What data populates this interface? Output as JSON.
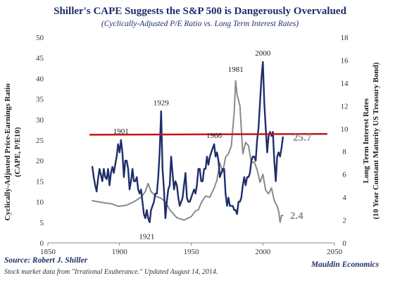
{
  "chart_data": {
    "type": "line",
    "title": "Shiller's CAPE Suggests the S&P 500 is Dangerously Overvalued",
    "subtitle": "(Cyclically-Adjusted P/E Ratio vs. Long Term Interest Rates)",
    "xlabel": "",
    "ylabel_left": "Cyclically-Adjusted Price-Earnings Ratio (CAPE, P/E10)",
    "ylabel_right": "Long Term Interest Rates (10 Year Constant Maturity US Treasury Bond)",
    "xlim": [
      1850,
      2050
    ],
    "ylim_left": [
      0,
      50
    ],
    "ylim_right": [
      0,
      18
    ],
    "x_ticks": [
      "1850",
      "1900",
      "1950",
      "2000",
      "2050"
    ],
    "y_ticks_left": [
      "0",
      "5",
      "10",
      "15",
      "20",
      "25",
      "30",
      "35",
      "40",
      "45",
      "50"
    ],
    "y_ticks_right": [
      "0",
      "2",
      "4",
      "6",
      "8",
      "10",
      "12",
      "14",
      "16",
      "18"
    ],
    "grid": false,
    "legend": "none",
    "colors": {
      "cape": "#1f2d6b",
      "rates": "#8a8a8a",
      "threshold": "#c0171b",
      "title": "#1f2d6b"
    },
    "series": [
      {
        "axis": "left",
        "color": "#1f2d6b",
        "points": [
          [
            1881,
            18.5
          ],
          [
            1882,
            16
          ],
          [
            1883,
            14
          ],
          [
            1884,
            12.5
          ],
          [
            1885,
            15.5
          ],
          [
            1886,
            18
          ],
          [
            1887,
            16.5
          ],
          [
            1888,
            15
          ],
          [
            1889,
            18
          ],
          [
            1890,
            16
          ],
          [
            1891,
            15.5
          ],
          [
            1892,
            18
          ],
          [
            1893,
            14
          ],
          [
            1894,
            17
          ],
          [
            1895,
            18.5
          ],
          [
            1896,
            17
          ],
          [
            1897,
            19
          ],
          [
            1898,
            21
          ],
          [
            1899,
            24
          ],
          [
            1900,
            22
          ],
          [
            1901,
            25
          ],
          [
            1902,
            22
          ],
          [
            1903,
            16
          ],
          [
            1904,
            20
          ],
          [
            1905,
            20
          ],
          [
            1906,
            18
          ],
          [
            1907,
            13
          ],
          [
            1908,
            15
          ],
          [
            1909,
            18
          ],
          [
            1910,
            15
          ],
          [
            1911,
            15
          ],
          [
            1912,
            16
          ],
          [
            1913,
            13
          ],
          [
            1914,
            12
          ],
          [
            1915,
            13
          ],
          [
            1916,
            10
          ],
          [
            1917,
            7
          ],
          [
            1918,
            6
          ],
          [
            1919,
            8
          ],
          [
            1920,
            6
          ],
          [
            1921,
            5
          ],
          [
            1922,
            8
          ],
          [
            1923,
            9
          ],
          [
            1924,
            10
          ],
          [
            1925,
            12
          ],
          [
            1926,
            12
          ],
          [
            1927,
            16
          ],
          [
            1928,
            22
          ],
          [
            1929,
            32
          ],
          [
            1930,
            18
          ],
          [
            1931,
            13
          ],
          [
            1932,
            6
          ],
          [
            1933,
            10
          ],
          [
            1934,
            13
          ],
          [
            1935,
            14
          ],
          [
            1936,
            21
          ],
          [
            1937,
            17
          ],
          [
            1938,
            13
          ],
          [
            1939,
            15
          ],
          [
            1940,
            14
          ],
          [
            1941,
            11
          ],
          [
            1942,
            9
          ],
          [
            1943,
            10
          ],
          [
            1944,
            11
          ],
          [
            1945,
            14
          ],
          [
            1946,
            17
          ],
          [
            1947,
            11
          ],
          [
            1948,
            10
          ],
          [
            1949,
            10
          ],
          [
            1950,
            11
          ],
          [
            1951,
            12
          ],
          [
            1952,
            13
          ],
          [
            1953,
            12
          ],
          [
            1954,
            14
          ],
          [
            1955,
            18
          ],
          [
            1956,
            18
          ],
          [
            1957,
            15
          ],
          [
            1958,
            15
          ],
          [
            1959,
            18
          ],
          [
            1960,
            18
          ],
          [
            1961,
            21
          ],
          [
            1962,
            19
          ],
          [
            1963,
            21
          ],
          [
            1964,
            22
          ],
          [
            1965,
            23
          ],
          [
            1966,
            24
          ],
          [
            1967,
            21
          ],
          [
            1968,
            22
          ],
          [
            1969,
            20
          ],
          [
            1970,
            16
          ],
          [
            1971,
            17
          ],
          [
            1972,
            18
          ],
          [
            1973,
            18
          ],
          [
            1974,
            12
          ],
          [
            1975,
            9
          ],
          [
            1976,
            11
          ],
          [
            1977,
            9
          ],
          [
            1978,
            9
          ],
          [
            1979,
            9
          ],
          [
            1980,
            8
          ],
          [
            1981,
            8
          ],
          [
            1982,
            7
          ],
          [
            1983,
            10
          ],
          [
            1984,
            10
          ],
          [
            1985,
            11
          ],
          [
            1986,
            14
          ],
          [
            1987,
            16
          ],
          [
            1988,
            14
          ],
          [
            1989,
            16
          ],
          [
            1990,
            16
          ],
          [
            1991,
            17
          ],
          [
            1992,
            20
          ],
          [
            1993,
            21
          ],
          [
            1994,
            21
          ],
          [
            1995,
            20
          ],
          [
            1996,
            25
          ],
          [
            1997,
            28
          ],
          [
            1998,
            34
          ],
          [
            1999,
            40
          ],
          [
            2000,
            44
          ],
          [
            2001,
            34
          ],
          [
            2002,
            28
          ],
          [
            2003,
            22
          ],
          [
            2004,
            26
          ],
          [
            2005,
            27
          ],
          [
            2006,
            26
          ],
          [
            2007,
            27
          ],
          [
            2008,
            20
          ],
          [
            2009,
            15
          ],
          [
            2010,
            21
          ],
          [
            2011,
            22
          ],
          [
            2012,
            21
          ],
          [
            2013,
            23
          ],
          [
            2014,
            25.7
          ]
        ]
      },
      {
        "axis": "right",
        "color": "#8a8a8a",
        "points": [
          [
            1881,
            3.7
          ],
          [
            1885,
            3.6
          ],
          [
            1890,
            3.5
          ],
          [
            1895,
            3.4
          ],
          [
            1899,
            3.2
          ],
          [
            1905,
            3.3
          ],
          [
            1910,
            3.6
          ],
          [
            1915,
            4.0
          ],
          [
            1918,
            4.5
          ],
          [
            1920,
            5.2
          ],
          [
            1922,
            4.5
          ],
          [
            1925,
            4.1
          ],
          [
            1929,
            3.9
          ],
          [
            1932,
            3.6
          ],
          [
            1935,
            2.9
          ],
          [
            1940,
            2.2
          ],
          [
            1945,
            2.0
          ],
          [
            1950,
            2.3
          ],
          [
            1953,
            2.8
          ],
          [
            1955,
            2.9
          ],
          [
            1957,
            3.5
          ],
          [
            1960,
            4.1
          ],
          [
            1963,
            4.0
          ],
          [
            1966,
            4.8
          ],
          [
            1968,
            5.5
          ],
          [
            1970,
            7.0
          ],
          [
            1972,
            6.2
          ],
          [
            1974,
            7.5
          ],
          [
            1976,
            7.8
          ],
          [
            1978,
            8.5
          ],
          [
            1980,
            11.5
          ],
          [
            1981,
            14.2
          ],
          [
            1982,
            13.0
          ],
          [
            1984,
            12.0
          ],
          [
            1986,
            7.8
          ],
          [
            1988,
            8.8
          ],
          [
            1990,
            8.5
          ],
          [
            1992,
            7.0
          ],
          [
            1994,
            7.1
          ],
          [
            1996,
            6.4
          ],
          [
            1998,
            5.3
          ],
          [
            2000,
            6.0
          ],
          [
            2002,
            4.6
          ],
          [
            2004,
            4.3
          ],
          [
            2006,
            4.8
          ],
          [
            2008,
            3.7
          ],
          [
            2010,
            3.2
          ],
          [
            2011,
            2.8
          ],
          [
            2012,
            1.8
          ],
          [
            2013,
            2.4
          ],
          [
            2014,
            2.4
          ]
        ]
      }
    ],
    "threshold": {
      "axis": "left",
      "y": [
        26.3,
        26.5
      ],
      "x": [
        1879,
        2045
      ],
      "label": ""
    },
    "annotations": [
      {
        "text": "1901",
        "x": 1901,
        "y": 26.0,
        "axis": "left",
        "anchor": "middle",
        "dy": -1
      },
      {
        "text": "1929",
        "x": 1929,
        "y": 33.0,
        "axis": "left",
        "anchor": "middle",
        "dy": -1
      },
      {
        "text": "1921",
        "x": 1919,
        "y": 3.0,
        "axis": "left",
        "anchor": "middle",
        "dy": 1
      },
      {
        "text": "1966",
        "x": 1966,
        "y": 25.0,
        "axis": "left",
        "anchor": "middle",
        "dy": -1
      },
      {
        "text": "1981",
        "x": 1981,
        "y": 14.8,
        "axis": "right",
        "anchor": "middle",
        "dy": -1
      },
      {
        "text": "2000",
        "x": 2000,
        "y": 45.0,
        "axis": "left",
        "anchor": "middle",
        "dy": -1
      }
    ],
    "value_labels": [
      {
        "text": "25.7",
        "x": 2021,
        "y": 25.7,
        "axis": "left",
        "series": 0
      },
      {
        "text": "2.4",
        "x": 2019,
        "y": 2.4,
        "axis": "right",
        "series": 1
      }
    ]
  },
  "footer": {
    "source": "Source: Robert J. Shiller",
    "note": "Stock market data from \"Irrational Exuberance.\" Updated August 14, 2014.",
    "brand": "Mauldin Economics"
  }
}
